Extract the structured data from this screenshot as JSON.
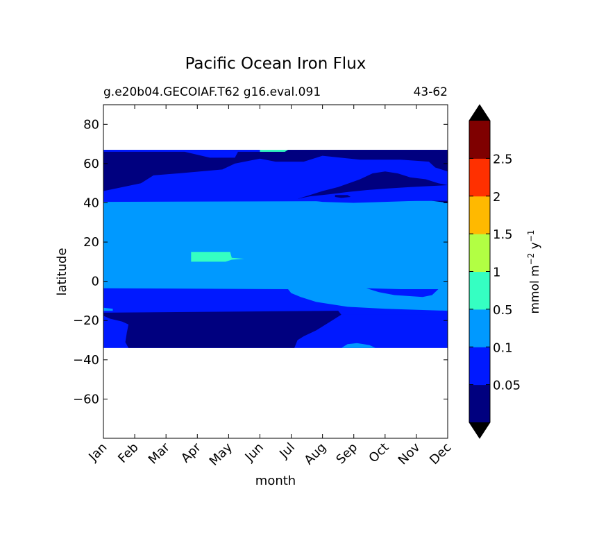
{
  "chart_data": {
    "type": "heatmap",
    "title": "Pacific Ocean Iron Flux",
    "subtitle_left": "g.e20b04.GECOIAF.T62 g16.eval.091",
    "subtitle_right": "43-62",
    "xlabel": "month",
    "ylabel": "latitude",
    "x_categories": [
      "Jan",
      "Feb",
      "Mar",
      "Apr",
      "May",
      "Jun",
      "Jul",
      "Aug",
      "Sep",
      "Oct",
      "Nov",
      "Dec"
    ],
    "xlim": [
      0,
      11
    ],
    "ylim": [
      -80,
      90
    ],
    "y_ticks": [
      80,
      60,
      40,
      20,
      0,
      -20,
      -40,
      -60
    ],
    "y_tick_labels": [
      "80",
      "60",
      "40",
      "20",
      "0",
      "−20",
      "−40",
      "−60"
    ],
    "data_extent_lat": [
      -34,
      67
    ],
    "colorbar": {
      "label_parts": [
        "mmol m",
        "−2",
        " y",
        "−1"
      ],
      "levels": [
        "0.05",
        "0.1",
        "0.5",
        "1",
        "1.5",
        "2",
        "2.5"
      ],
      "colors": [
        "#00007f",
        "#0019ff",
        "#0099ff",
        "#35ffc2",
        "#b2ff43",
        "#ffb900",
        "#ff3000",
        "#7f0000"
      ],
      "extend_colors": [
        "#000000",
        "#000000"
      ]
    },
    "regions": [
      {
        "level_index": 1,
        "note": "background field"
      },
      {
        "level_index": 2,
        "points": [
          [
            0,
            40.5
          ],
          [
            11,
            41
          ],
          [
            11,
            -16
          ],
          [
            0,
            -16
          ]
        ]
      },
      {
        "level_index": 0,
        "points": [
          [
            0,
            67
          ],
          [
            0,
            46
          ],
          [
            1.2,
            50
          ],
          [
            1.6,
            54
          ],
          [
            2.4,
            55
          ],
          [
            3.8,
            57
          ],
          [
            4.2,
            60
          ],
          [
            5,
            62.5
          ],
          [
            5.5,
            61
          ],
          [
            6.4,
            61
          ],
          [
            7,
            64
          ],
          [
            8.2,
            62
          ],
          [
            9.5,
            62
          ],
          [
            10.4,
            61
          ],
          [
            10.6,
            58
          ],
          [
            11,
            56
          ],
          [
            11,
            67
          ]
        ]
      },
      {
        "level_index": 1,
        "points": [
          [
            0,
            67
          ],
          [
            0,
            66
          ],
          [
            2.6,
            66
          ],
          [
            3.4,
            63
          ],
          [
            4.2,
            63
          ],
          [
            4.3,
            66
          ],
          [
            5,
            66
          ],
          [
            5.2,
            67
          ]
        ]
      },
      {
        "level_index": 0,
        "points": [
          [
            6.2,
            42
          ],
          [
            6.6,
            44
          ],
          [
            7,
            46
          ],
          [
            7.5,
            48
          ],
          [
            8.2,
            52
          ],
          [
            8.6,
            55
          ],
          [
            9,
            56
          ],
          [
            9.4,
            55
          ],
          [
            9.8,
            53
          ],
          [
            10.3,
            52
          ],
          [
            10.7,
            50
          ],
          [
            11,
            49
          ],
          [
            11,
            40
          ],
          [
            10.5,
            41
          ],
          [
            10,
            42
          ],
          [
            9.2,
            43
          ],
          [
            8.5,
            44
          ],
          [
            7.8,
            44
          ],
          [
            7.2,
            43
          ]
        ]
      },
      {
        "level_index": 1,
        "points": [
          [
            6.2,
            42
          ],
          [
            7,
            40.5
          ],
          [
            8,
            40
          ],
          [
            9,
            40.5
          ],
          [
            10,
            41
          ],
          [
            11,
            41
          ],
          [
            11,
            49
          ],
          [
            10.4,
            48.5
          ],
          [
            9.8,
            48
          ],
          [
            9.1,
            47.3
          ],
          [
            8.4,
            46.5
          ],
          [
            7.8,
            45.5
          ],
          [
            7.2,
            44.3
          ],
          [
            6.6,
            43.3
          ]
        ]
      },
      {
        "level_index": 0,
        "points": [
          [
            7.4,
            44
          ],
          [
            7.8,
            44
          ],
          [
            7.9,
            43
          ],
          [
            7.6,
            42.5
          ],
          [
            7.4,
            43
          ]
        ]
      },
      {
        "level_index": 3,
        "points": [
          [
            5,
            67
          ],
          [
            5,
            66
          ],
          [
            5.8,
            66
          ],
          [
            5.9,
            67
          ]
        ]
      },
      {
        "level_index": 3,
        "points": [
          [
            2.8,
            15
          ],
          [
            4.05,
            15
          ],
          [
            4.1,
            12
          ],
          [
            4.5,
            11.5
          ],
          [
            4.1,
            11
          ],
          [
            3.9,
            10
          ],
          [
            2.8,
            10
          ]
        ]
      },
      {
        "level_index": 1,
        "points": [
          [
            0,
            -3.5
          ],
          [
            5.9,
            -4
          ],
          [
            6,
            -6
          ],
          [
            6.3,
            -8
          ],
          [
            6.8,
            -10.5
          ],
          [
            7.8,
            -13
          ],
          [
            9,
            -14
          ],
          [
            11,
            -15
          ],
          [
            11,
            -17
          ],
          [
            0,
            -17
          ]
        ]
      },
      {
        "level_index": 1,
        "points": [
          [
            8.4,
            -3.5
          ],
          [
            8.8,
            -5.5
          ],
          [
            9.3,
            -7
          ],
          [
            10.2,
            -8
          ],
          [
            10.5,
            -7
          ],
          [
            10.7,
            -4
          ],
          [
            9.5,
            -4
          ]
        ]
      },
      {
        "level_index": 0,
        "points": [
          [
            0,
            -16
          ],
          [
            7.5,
            -15
          ],
          [
            7.6,
            -17
          ],
          [
            7.2,
            -21
          ],
          [
            6.8,
            -25
          ],
          [
            6.4,
            -28
          ],
          [
            6.2,
            -30
          ],
          [
            6.1,
            -34
          ],
          [
            0.8,
            -34
          ],
          [
            0.7,
            -31
          ],
          [
            0.75,
            -26
          ],
          [
            0.8,
            -22
          ],
          [
            0.6,
            -20.5
          ],
          [
            0.2,
            -19
          ],
          [
            0,
            -17.5
          ]
        ]
      },
      {
        "level_index": 2,
        "points": [
          [
            7.6,
            -34
          ],
          [
            7.8,
            -32
          ],
          [
            8.1,
            -31.5
          ],
          [
            8.5,
            -32.5
          ],
          [
            8.7,
            -34
          ]
        ]
      },
      {
        "level_index": 2,
        "points": [
          [
            0,
            -13.5
          ],
          [
            0.3,
            -14
          ],
          [
            0.3,
            -15
          ],
          [
            0,
            -15
          ]
        ]
      }
    ]
  }
}
